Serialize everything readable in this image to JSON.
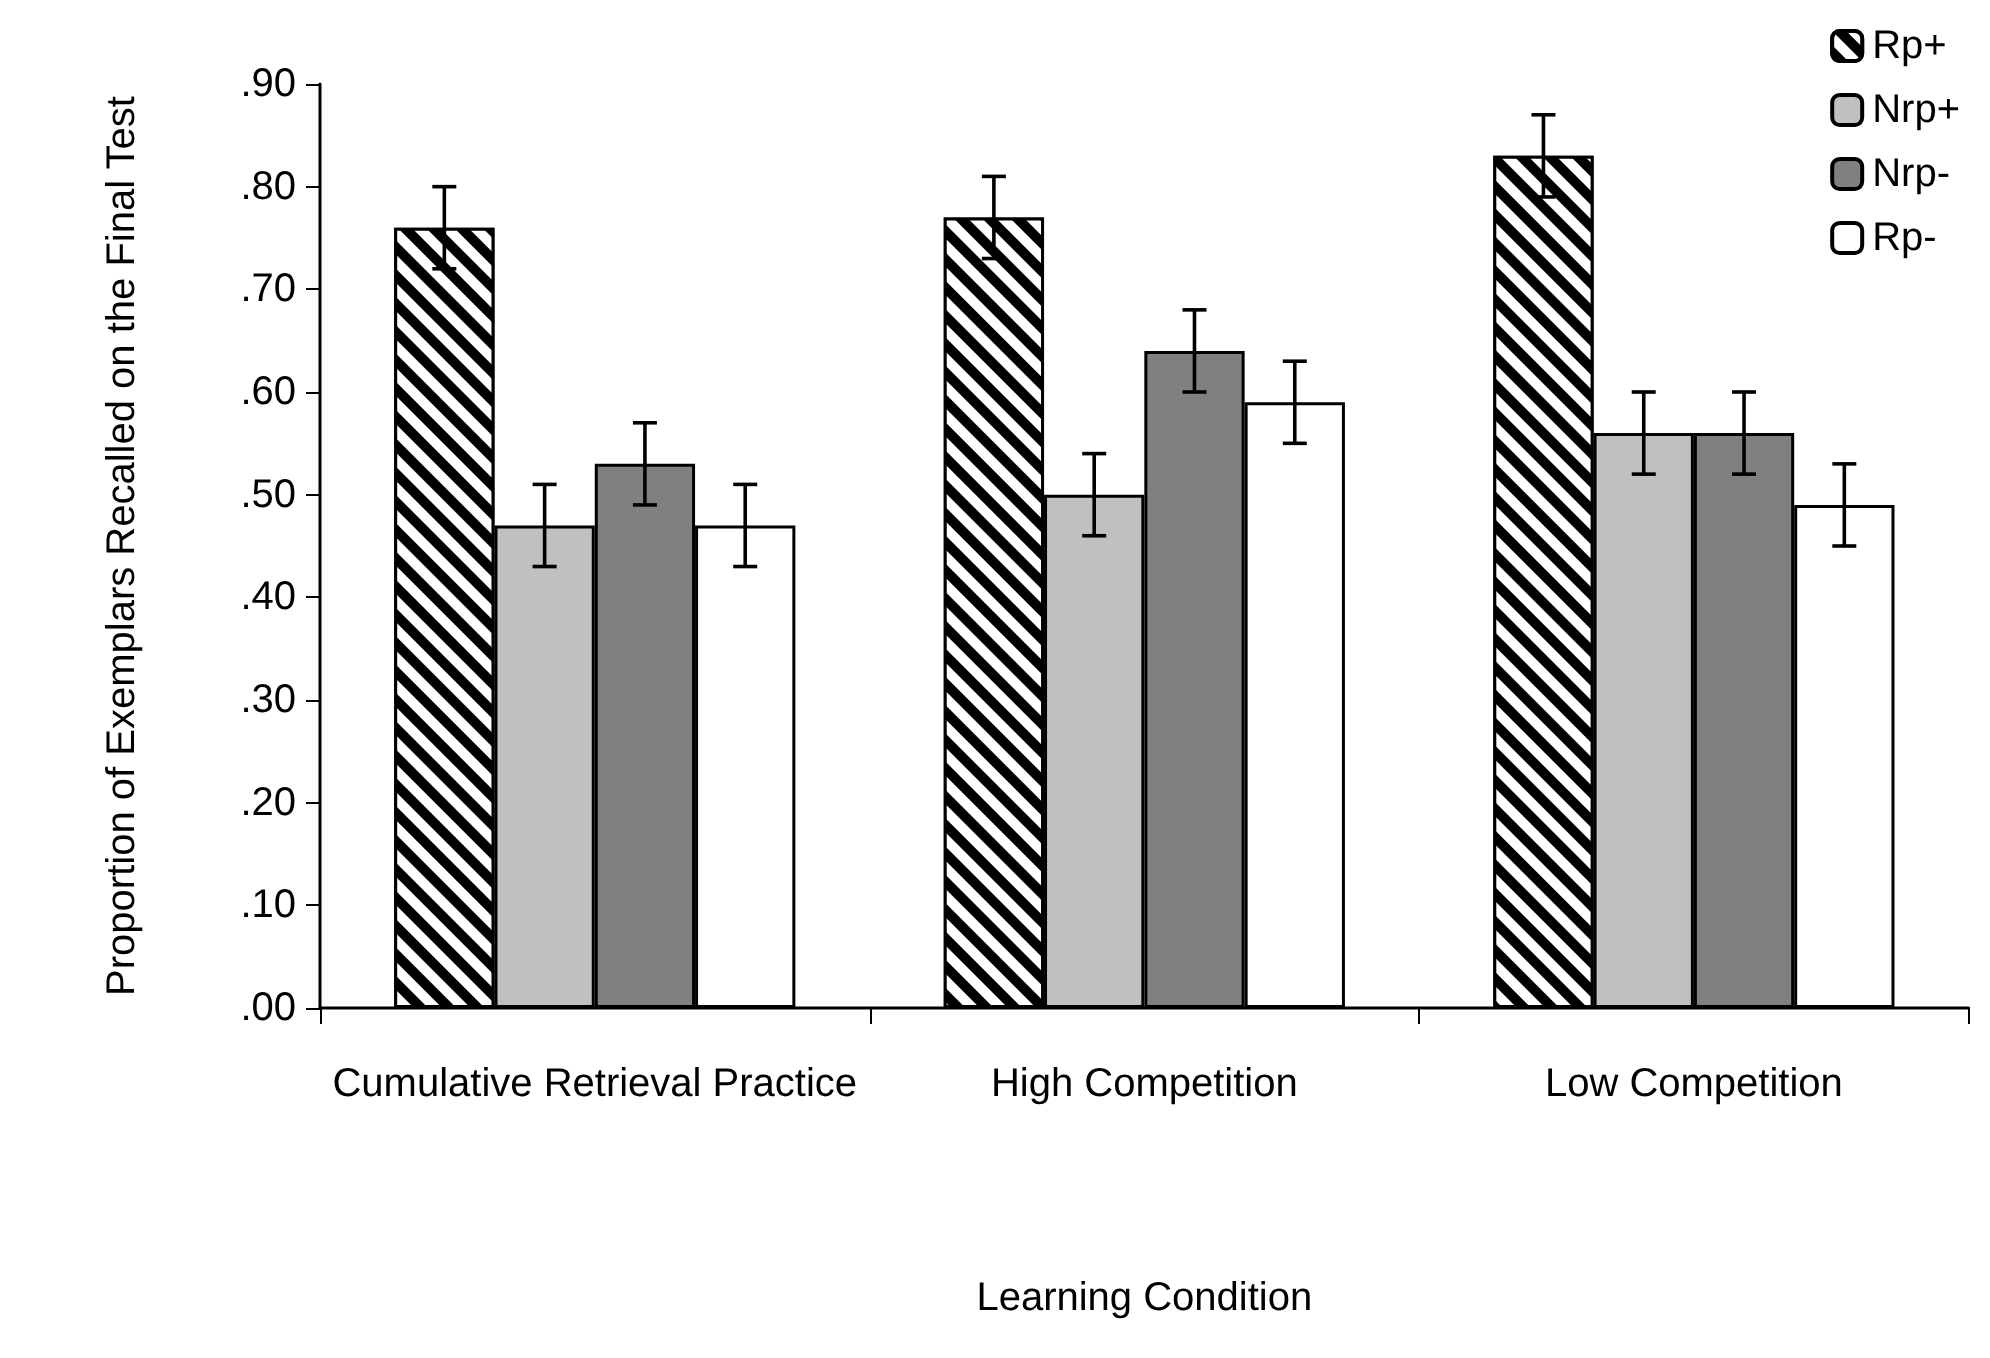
{
  "chart_data": {
    "type": "bar",
    "xlabel": "Learning Condition",
    "ylabel": "Proportion of Exemplars Recalled on the Final Test",
    "categories": [
      "Cumulative Retrieval Practice",
      "High Competition",
      "Low Competition"
    ],
    "series": [
      {
        "name": "Rp+",
        "color": "#000000",
        "values": [
          0.76,
          0.77,
          0.83
        ],
        "errors": [
          0.04,
          0.04,
          0.04
        ]
      },
      {
        "name": "Nrp+",
        "color": "#c0c0c0",
        "values": [
          0.47,
          0.5,
          0.56
        ],
        "errors": [
          0.04,
          0.04,
          0.04
        ]
      },
      {
        "name": "Nrp-",
        "color": "#808080",
        "values": [
          0.53,
          0.64,
          0.56
        ],
        "errors": [
          0.04,
          0.04,
          0.04
        ]
      },
      {
        "name": "Rp-",
        "color": "#ffffff",
        "values": [
          0.47,
          0.59,
          0.49
        ],
        "errors": [
          0.04,
          0.04,
          0.04
        ]
      }
    ],
    "ylim": [
      0,
      0.9
    ],
    "yticks": [
      {
        "value": 0,
        "label": ".00"
      },
      {
        "value": 0.1,
        "label": ".10"
      },
      {
        "value": 0.2,
        "label": ".20"
      },
      {
        "value": 0.3,
        "label": ".30"
      },
      {
        "value": 0.4,
        "label": ".40"
      },
      {
        "value": 0.5,
        "label": ".50"
      },
      {
        "value": 0.6,
        "label": ".60"
      },
      {
        "value": 0.7,
        "label": ".70"
      },
      {
        "value": 0.8,
        "label": ".80"
      },
      {
        "value": 0.9,
        "label": ".90"
      }
    ],
    "grid": false,
    "legend": "top right"
  }
}
